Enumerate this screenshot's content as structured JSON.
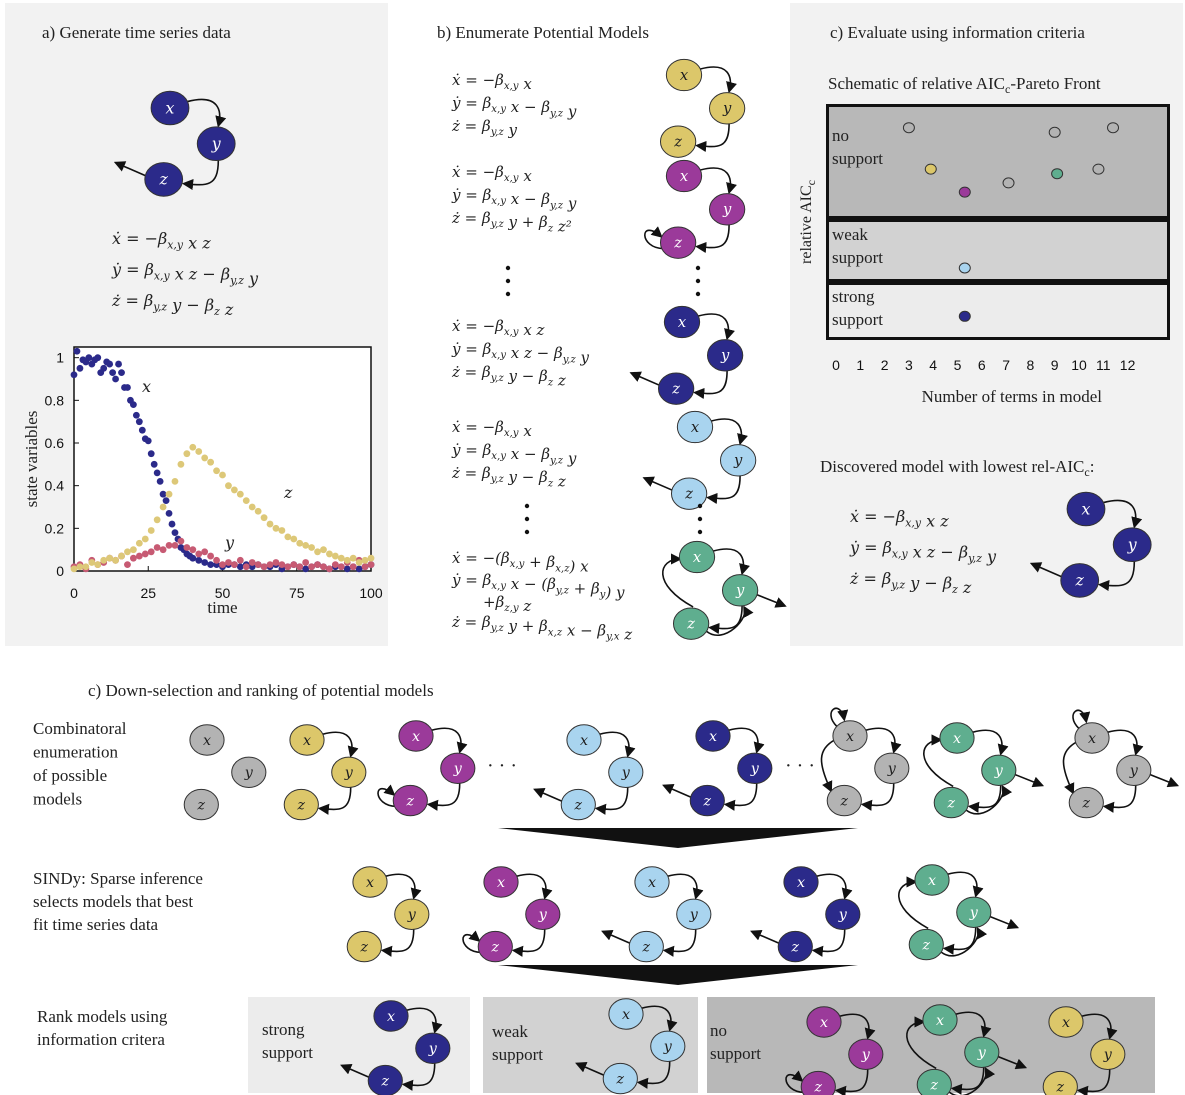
{
  "panel_a": {
    "title": "a) Generate time series data",
    "equations": [
      "ẋ = −β_{x,y} x z",
      "ẏ = β_{x,y} x z − β_{y,z} y",
      "ż = β_{y,z} y − β_z z"
    ],
    "node_labels": [
      "x",
      "y",
      "z"
    ]
  },
  "panel_b": {
    "title": "b) Enumerate Potential Models",
    "models": [
      {
        "eq": [
          "ẋ = −β_{x,y} x",
          "ẏ = β_{x,y} x − β_{y,z} y",
          "ż = β_{y,z} y"
        ],
        "color": "yellow"
      },
      {
        "eq": [
          "ẋ = −β_{x,y} x",
          "ẏ = β_{x,y} x − β_{y,z} y",
          "ż = β_{y,z} y + β_z z²"
        ],
        "color": "purple"
      },
      {
        "eq": [
          "ẋ = −β_{x,y} x z",
          "ẏ = β_{x,y} x z − β_{y,z} y",
          "ż = β_{y,z} y − β_z z"
        ],
        "color": "navy"
      },
      {
        "eq": [
          "ẋ = −β_{x,y} x",
          "ẏ = β_{x,y} x − β_{y,z} y",
          "ż = β_{y,z} y − β_z z"
        ],
        "color": "lightblue"
      },
      {
        "eq": [
          "ẋ = −(β_{x,y} + β_{x,z}) x",
          "ẏ = β_{x,y} x − (β_{y,z} + β_y) y",
          "+β_{z,y} z",
          "ż = β_{y,z} y + β_{x,z} x − β_{y,x} z"
        ],
        "color": "teal"
      }
    ]
  },
  "panel_c": {
    "title": "c) Evaluate using information criteria",
    "chart_title": "Schematic of relative AIC_c-Pareto Front",
    "ylabel": "relative AIC_c",
    "xlabel": "Number of terms in model",
    "bands": [
      "no support",
      "weak support",
      "strong support"
    ],
    "discovered_title": "Discovered model with lowest rel-AIC_c:",
    "discovered_eq": [
      "ẋ = −β_{x,y} x z",
      "ẏ = β_{x,y} x z − β_{y,z} y",
      "ż = β_{y,z} y − β_z z"
    ]
  },
  "panel_d": {
    "title": "c) Down-selection and ranking of potential models",
    "row1_label": [
      "Combinatoral",
      "enumeration",
      "of possible",
      "models"
    ],
    "row2_label": [
      "SINDy: Sparse inference",
      "selects models that best",
      "fit time series data"
    ],
    "row3_label": [
      "Rank models using",
      "information critera"
    ],
    "box_labels": [
      "strong support",
      "weak support",
      "no support"
    ],
    "ellipsis": "· · ·"
  },
  "colors": {
    "navy": "#2b2a8a",
    "yellow": "#dcc76a",
    "purple": "#9b3a9a",
    "lightblue": "#a9d4ef",
    "teal": "#5fae8f",
    "gray": "#b3b3b3",
    "pink": "#c75a73",
    "tsyellow": "#ddc878",
    "panel_bg": "#f2f2f2",
    "band_dark": "#b8b8b8",
    "band_mid": "#d2d2d2",
    "band_light": "#ececec"
  },
  "chart_data": [
    {
      "type": "scatter",
      "xlabel": "time",
      "ylabel": "state variables",
      "xlim": [
        0,
        100
      ],
      "ylim": [
        0,
        1.05
      ],
      "xticks": [
        0,
        25,
        50,
        75,
        100
      ],
      "yticks": [
        0,
        0.2,
        0.4,
        0.6,
        0.8,
        1
      ],
      "series": [
        {
          "name": "x",
          "color": "#2b2a8a",
          "x": [
            0,
            1,
            2,
            3,
            4,
            5,
            6,
            7,
            8,
            9,
            10,
            11,
            12,
            13,
            14,
            15,
            16,
            17,
            18,
            19,
            20,
            21,
            22,
            23,
            24,
            25,
            26,
            27,
            28,
            29,
            30,
            31,
            32,
            33,
            34,
            35,
            36,
            37,
            38,
            39,
            40,
            42,
            44,
            46,
            48,
            50,
            52,
            54,
            56,
            58,
            60,
            62,
            64,
            66,
            68,
            70,
            72,
            74,
            76,
            78,
            80,
            82,
            84,
            86,
            88,
            90,
            92,
            94,
            96,
            98,
            100
          ],
          "y": [
            0.92,
            1.03,
            0.95,
            0.99,
            0.98,
            1.0,
            0.97,
            0.99,
            1.0,
            0.93,
            0.95,
            0.98,
            0.97,
            0.93,
            0.9,
            0.97,
            0.93,
            0.86,
            0.86,
            0.8,
            0.78,
            0.73,
            0.7,
            0.66,
            0.62,
            0.61,
            0.55,
            0.5,
            0.46,
            0.42,
            0.36,
            0.33,
            0.27,
            0.22,
            0.18,
            0.15,
            0.11,
            0.1,
            0.08,
            0.07,
            0.06,
            0.05,
            0.04,
            0.03,
            0.03,
            0.02,
            0.03,
            0.03,
            0.02,
            0.03,
            0.02,
            0.03,
            0.02,
            0.02,
            0.03,
            0.01,
            0.02,
            0.03,
            0.02,
            0.01,
            0.02,
            0.03,
            0.02,
            0.01,
            0.02,
            0.02,
            0.01,
            0.02,
            0.01,
            0.02,
            0.03
          ]
        },
        {
          "name": "y",
          "color": "#c75a73",
          "x": [
            0,
            2,
            4,
            6,
            8,
            10,
            12,
            14,
            16,
            18,
            20,
            22,
            24,
            26,
            28,
            30,
            32,
            34,
            36,
            38,
            40,
            42,
            44,
            46,
            48,
            50,
            52,
            54,
            56,
            58,
            60,
            62,
            64,
            66,
            68,
            70,
            72,
            74,
            76,
            78,
            80,
            82,
            84,
            86,
            88,
            90,
            92,
            94,
            96,
            98,
            100
          ],
          "y": [
            0.02,
            0.03,
            0.01,
            0.05,
            0.03,
            0.04,
            0.06,
            0.05,
            0.07,
            0.03,
            0.06,
            0.07,
            0.08,
            0.09,
            0.11,
            0.1,
            0.12,
            0.12,
            0.14,
            0.11,
            0.1,
            0.08,
            0.09,
            0.07,
            0.05,
            0.03,
            0.04,
            0.03,
            0.05,
            0.02,
            0.04,
            0.03,
            0.02,
            0.03,
            0.04,
            0.03,
            0.02,
            0.03,
            0.02,
            0.04,
            0.02,
            0.03,
            0.02,
            0.01,
            0.03,
            0.02,
            0.04,
            0.02,
            0.05,
            0.02,
            0.03
          ]
        },
        {
          "name": "z",
          "color": "#ddc878",
          "x": [
            0,
            2,
            4,
            6,
            8,
            10,
            12,
            14,
            16,
            18,
            20,
            22,
            24,
            26,
            28,
            30,
            32,
            34,
            36,
            38,
            40,
            42,
            44,
            46,
            48,
            50,
            52,
            54,
            56,
            58,
            60,
            62,
            64,
            66,
            68,
            70,
            72,
            74,
            76,
            78,
            80,
            82,
            84,
            86,
            88,
            90,
            92,
            94,
            96,
            98,
            100
          ],
          "y": [
            0.01,
            0.02,
            0.02,
            0.04,
            0.03,
            0.05,
            0.06,
            0.05,
            0.07,
            0.09,
            0.1,
            0.13,
            0.15,
            0.19,
            0.24,
            0.3,
            0.36,
            0.42,
            0.5,
            0.55,
            0.58,
            0.56,
            0.53,
            0.51,
            0.47,
            0.45,
            0.4,
            0.38,
            0.36,
            0.33,
            0.3,
            0.28,
            0.25,
            0.22,
            0.2,
            0.19,
            0.16,
            0.15,
            0.13,
            0.12,
            0.11,
            0.09,
            0.1,
            0.08,
            0.07,
            0.06,
            0.05,
            0.06,
            0.04,
            0.05,
            0.06
          ]
        }
      ],
      "annotations": [
        "x",
        "y",
        "z"
      ]
    },
    {
      "type": "scatter",
      "title": "Schematic of relative AIC_c-Pareto Front",
      "xlabel": "Number of terms in model",
      "ylabel": "relative AIC_c",
      "xlim": [
        0,
        13
      ],
      "xticks": [
        0,
        1,
        2,
        3,
        4,
        5,
        6,
        7,
        8,
        9,
        10,
        11,
        12
      ],
      "series": [
        {
          "name": "",
          "points": [
            {
              "x": 3,
              "level": 0.91,
              "color": "gray"
            },
            {
              "x": 3.9,
              "level": 0.73,
              "color": "yellow"
            },
            {
              "x": 5.3,
              "level": 0.63,
              "color": "purple"
            },
            {
              "x": 7.1,
              "level": 0.67,
              "color": "gray"
            },
            {
              "x": 9,
              "level": 0.89,
              "color": "gray"
            },
            {
              "x": 9.1,
              "level": 0.71,
              "color": "teal"
            },
            {
              "x": 10.8,
              "level": 0.73,
              "color": "gray"
            },
            {
              "x": 11.4,
              "level": 0.91,
              "color": "gray"
            },
            {
              "x": 5.3,
              "level": 0.3,
              "color": "lightblue"
            },
            {
              "x": 5.3,
              "level": 0.09,
              "color": "navy"
            }
          ]
        }
      ]
    }
  ]
}
